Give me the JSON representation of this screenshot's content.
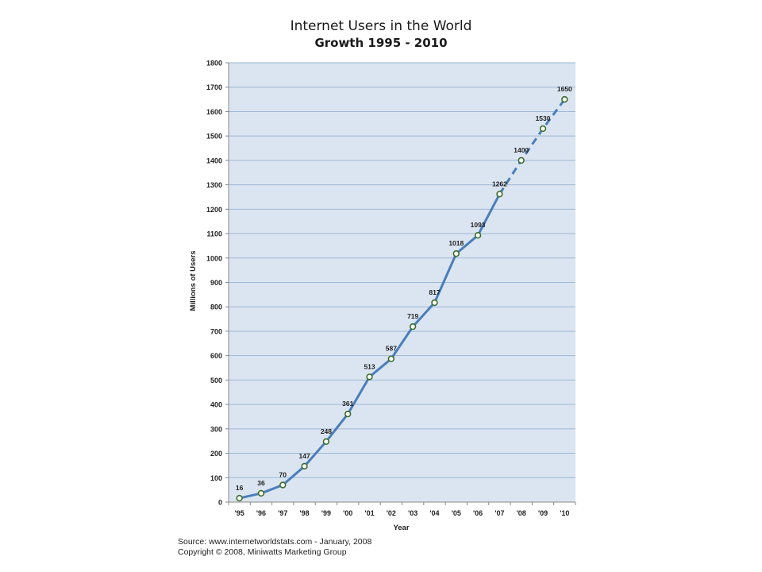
{
  "chart_data": {
    "type": "line",
    "title": "Internet Users in the World",
    "subtitle": "Growth 1995 - 2010",
    "xlabel": "Year",
    "ylabel": "Millions of Users",
    "ylim": [
      0,
      1800
    ],
    "y_ticks": [
      0,
      100,
      200,
      300,
      400,
      500,
      600,
      700,
      800,
      900,
      1000,
      1100,
      1200,
      1300,
      1400,
      1500,
      1600,
      1700,
      1800
    ],
    "grid": true,
    "categories": [
      "'95",
      "'96",
      "'97",
      "'98",
      "'99",
      "'00",
      "'01",
      "'02",
      "'03",
      "'04",
      "'05",
      "'06",
      "'07",
      "'08",
      "'09",
      "'10"
    ],
    "series": [
      {
        "values": [
          16,
          36,
          70,
          147,
          248,
          361,
          513,
          587,
          719,
          817,
          1018,
          1093,
          1262,
          1400,
          1530,
          1650
        ],
        "labels": [
          "16",
          "36",
          "70",
          "147",
          "248",
          "361",
          "513",
          "587",
          "719",
          "817",
          "1018",
          "1093",
          "1262",
          "1400",
          "1530",
          "1650"
        ],
        "line_style_note": "solid through '07, dashed from '07 to '10"
      }
    ],
    "colors": {
      "line": "#4a7ebb",
      "plot_bg": "#dbe5f1",
      "grid": "#9db7d5",
      "marker_fill": "#ffffff",
      "marker_stroke": "#3d6e2a"
    }
  },
  "footer": {
    "source": "Source: www.internetworldstats.com - January, 2008",
    "copyright": "Copyright © 2008, Miniwatts Marketing Group"
  }
}
